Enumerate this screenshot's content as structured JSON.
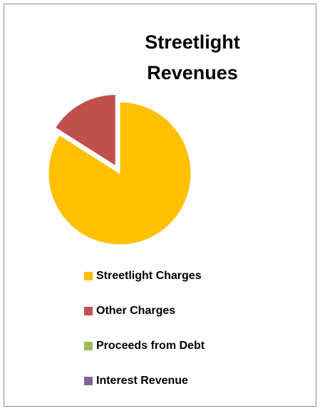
{
  "chart_data": {
    "type": "pie",
    "title": "Streetlight Revenues",
    "categories": [
      "Streetlight Charges",
      "Other Charges",
      "Proceeds from Debt",
      "Interest Revenue"
    ],
    "values": [
      84,
      16,
      0,
      0
    ],
    "colors": [
      "#ffc000",
      "#c0504d",
      "#9bbb59",
      "#8064a2"
    ],
    "exploded": "Other Charges"
  }
}
